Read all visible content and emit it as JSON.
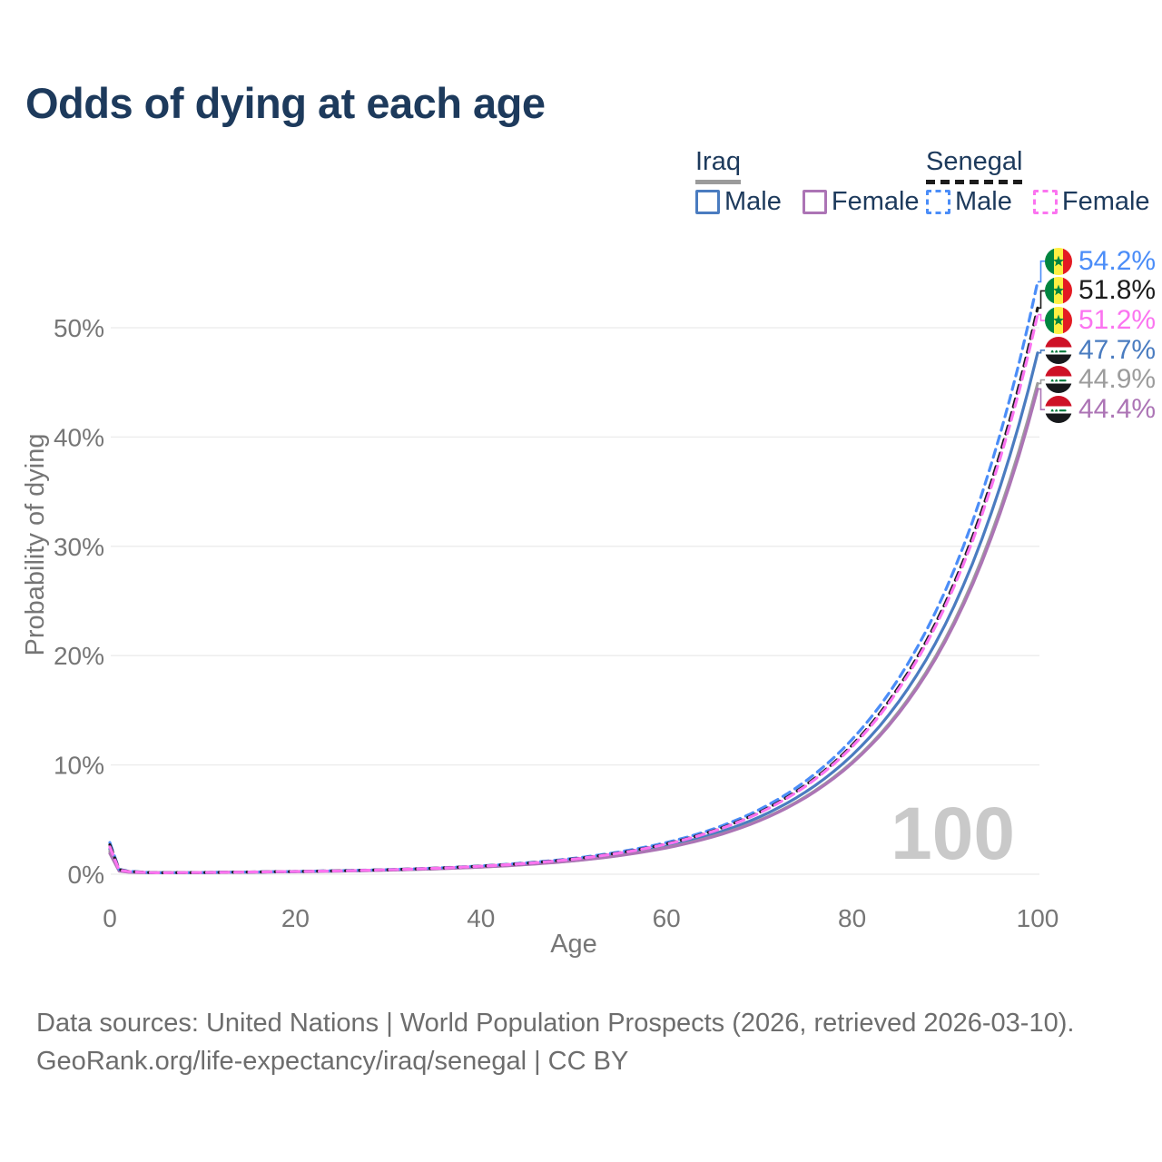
{
  "title": "Odds of dying at each age",
  "watermark": "100",
  "footer": {
    "line1": "Data sources: United Nations | World Population Prospects (2026, retrieved 2026-03-10).",
    "line2": "GeoRank.org/life-expectancy/iraq/senegal | CC BY"
  },
  "colors": {
    "title_navy": "#1d3a5c",
    "axis_gray": "#767676",
    "gridline": "#ebebeb",
    "watermark_gray": "#c9c9c9",
    "iraq_male": "#4a7cc0",
    "iraq_all": "#9c9c9c",
    "iraq_female": "#ac74b5",
    "senegal_male": "#4b8df8",
    "senegal_all": "#1c1c1c",
    "senegal_female": "#fb74f0"
  },
  "legend": {
    "groups": [
      {
        "country": "Iraq",
        "line_style": "solid",
        "underline_color": "#9b9b9b",
        "items": [
          {
            "label": "Male",
            "color": "#4a7cc0"
          },
          {
            "label": "Female",
            "color": "#ac74b5"
          }
        ]
      },
      {
        "country": "Senegal",
        "line_style": "dashed",
        "underline_color": "#1c1c1c",
        "items": [
          {
            "label": "Male",
            "color": "#4b8df8"
          },
          {
            "label": "Female",
            "color": "#fb74f0"
          }
        ]
      }
    ]
  },
  "chart_data": {
    "type": "line",
    "title": "Odds of dying at each age",
    "xlabel": "Age",
    "ylabel": "Probability of dying",
    "x_ticks": [
      0,
      20,
      40,
      60,
      80,
      100
    ],
    "y_ticks_pct": [
      0,
      10,
      20,
      30,
      40,
      50
    ],
    "xlim": [
      0,
      100
    ],
    "ylim_pct": [
      0,
      56
    ],
    "grid": "horizontal-only",
    "legend_position": "top-right",
    "ages": [
      0,
      1,
      2,
      5,
      10,
      15,
      20,
      25,
      30,
      35,
      40,
      45,
      50,
      55,
      60,
      65,
      70,
      75,
      80,
      85,
      90,
      95,
      100
    ],
    "series": [
      {
        "name": "Senegal Male",
        "country": "Senegal",
        "sex": "Male",
        "color": "#4b8df8",
        "dashed": true,
        "flag": "senegal",
        "end_label": "54.2%",
        "end_value_pct": 54.2,
        "values_pct": [
          2.9,
          0.45,
          0.28,
          0.13,
          0.16,
          0.2,
          0.25,
          0.33,
          0.42,
          0.56,
          0.76,
          1.05,
          1.45,
          2.05,
          2.9,
          4.13,
          5.91,
          8.52,
          12.33,
          17.87,
          25.84,
          37.51,
          54.2
        ]
      },
      {
        "name": "Senegal",
        "country": "Senegal",
        "sex": "All",
        "color": "#1c1c1c",
        "dashed": true,
        "flag": "senegal",
        "end_label": "51.8%",
        "end_value_pct": 51.8,
        "values_pct": [
          2.7,
          0.42,
          0.26,
          0.13,
          0.16,
          0.2,
          0.25,
          0.32,
          0.41,
          0.55,
          0.74,
          1.01,
          1.4,
          1.97,
          2.78,
          3.96,
          5.66,
          8.16,
          11.79,
          17.09,
          24.71,
          35.86,
          51.8
        ]
      },
      {
        "name": "Senegal Female",
        "country": "Senegal",
        "sex": "Female",
        "color": "#fb74f0",
        "dashed": true,
        "flag": "senegal",
        "end_label": "51.2%",
        "end_value_pct": 51.2,
        "values_pct": [
          2.5,
          0.38,
          0.24,
          0.13,
          0.16,
          0.2,
          0.25,
          0.31,
          0.41,
          0.54,
          0.73,
          1.0,
          1.38,
          1.95,
          2.75,
          3.92,
          5.6,
          8.06,
          11.66,
          16.89,
          24.43,
          35.44,
          51.2
        ]
      },
      {
        "name": "Iraq Male",
        "country": "Iraq",
        "sex": "Male",
        "color": "#4a7cc0",
        "dashed": false,
        "flag": "iraq",
        "end_label": "47.7%",
        "end_value_pct": 47.7,
        "values_pct": [
          2.3,
          0.35,
          0.22,
          0.13,
          0.16,
          0.19,
          0.24,
          0.3,
          0.39,
          0.51,
          0.69,
          0.94,
          1.3,
          1.83,
          2.58,
          3.66,
          5.23,
          7.53,
          10.88,
          15.75,
          22.77,
          33.04,
          47.7
        ]
      },
      {
        "name": "Iraq",
        "country": "Iraq",
        "sex": "All",
        "color": "#9c9c9c",
        "dashed": false,
        "flag": "iraq",
        "end_label": "44.9%",
        "end_value_pct": 44.9,
        "values_pct": [
          2.1,
          0.32,
          0.2,
          0.13,
          0.15,
          0.19,
          0.23,
          0.29,
          0.38,
          0.49,
          0.66,
          0.9,
          1.24,
          1.73,
          2.44,
          3.46,
          4.93,
          7.1,
          10.25,
          14.84,
          21.45,
          31.12,
          44.9
        ]
      },
      {
        "name": "Iraq Female",
        "country": "Iraq",
        "sex": "Female",
        "color": "#ac74b5",
        "dashed": false,
        "flag": "iraq",
        "end_label": "44.4%",
        "end_value_pct": 44.4,
        "values_pct": [
          1.9,
          0.29,
          0.18,
          0.13,
          0.15,
          0.19,
          0.23,
          0.29,
          0.37,
          0.49,
          0.65,
          0.89,
          1.22,
          1.71,
          2.41,
          3.42,
          4.88,
          7.02,
          10.14,
          14.68,
          21.22,
          30.77,
          44.4
        ]
      }
    ]
  }
}
